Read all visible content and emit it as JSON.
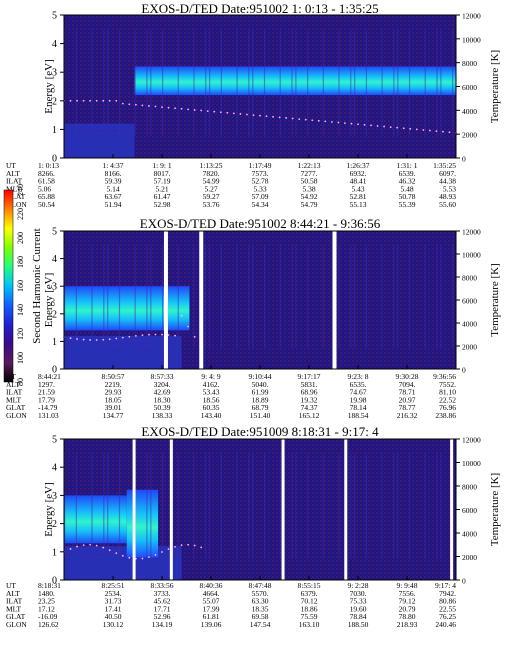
{
  "chart_data": [
    {
      "type": "heatmap",
      "title": "EXOS-D/TED   Date:951002   1: 0:13 - 1:35:25",
      "ylabel": "Energy [eV]",
      "y2label": "Temperature [K]",
      "ylim": [
        0,
        5
      ],
      "y2lim": [
        0,
        12000
      ],
      "yticks": [
        "0",
        "1",
        "2",
        "3",
        "4",
        "5"
      ],
      "y2ticks": [
        "0",
        "2000",
        "4000",
        "6000",
        "8000",
        "10000",
        "12000"
      ],
      "orbit_rows": [
        {
          "label": "UT",
          "values": [
            "1: 0:13",
            "1: 4:37",
            "1: 9: 1",
            "1:13:25",
            "1:17:49",
            "1:22:13",
            "1:26:37",
            "1:31: 1",
            "1:35:25"
          ]
        },
        {
          "label": "ALT",
          "values": [
            "8266.",
            "8166.",
            "8017.",
            "7820.",
            "7573.",
            "7277.",
            "6932.",
            "6539.",
            "6097."
          ]
        },
        {
          "label": "ILAT",
          "values": [
            "61.58",
            "59.39",
            "57.19",
            "54.99",
            "52.78",
            "50.58",
            "48.41",
            "46.32",
            "44.38"
          ]
        },
        {
          "label": "MLT",
          "values": [
            "5.06",
            "5.14",
            "5.21",
            "5.27",
            "5.33",
            "5.38",
            "5.43",
            "5.48",
            "5.53"
          ]
        },
        {
          "label": "GLAT",
          "values": [
            "65.88",
            "63.67",
            "61.47",
            "59.27",
            "57.09",
            "54.92",
            "52.81",
            "50.78",
            "48.93"
          ]
        },
        {
          "label": "GLON",
          "values": [
            "50.54",
            "51.94",
            "52.98",
            "53.76",
            "54.34",
            "54.79",
            "55.13",
            "55.39",
            "55.60"
          ]
        }
      ]
    },
    {
      "type": "heatmap",
      "title": "EXOS-D/TED   Date:951002   8:44:21 - 9:36:56",
      "ylabel": "Energy [eV]",
      "y2label": "Temperature [K]",
      "ylim": [
        0,
        5
      ],
      "y2lim": [
        0,
        12000
      ],
      "yticks": [
        "0",
        "1",
        "2",
        "3",
        "4",
        "5"
      ],
      "y2ticks": [
        "0",
        "2000",
        "4000",
        "6000",
        "8000",
        "10000",
        "12000"
      ],
      "orbit_rows": [
        {
          "label": "UT",
          "values": [
            "8:44:21",
            "8:50:57",
            "8:57:33",
            "9: 4: 9",
            "9:10:44",
            "9:17:17",
            "9:23: 8",
            "9:30:28",
            "9:36:56"
          ]
        },
        {
          "label": "ALT",
          "values": [
            "1297.",
            "2219.",
            "3204.",
            "4162.",
            "5040.",
            "5831.",
            "6535.",
            "7094.",
            "7552."
          ]
        },
        {
          "label": "ILAT",
          "values": [
            "21.59",
            "29.93",
            "42.69",
            "53.43",
            "61.99",
            "68.96",
            "74.67",
            "78.71",
            "81.10"
          ]
        },
        {
          "label": "MLT",
          "values": [
            "17.79",
            "18.05",
            "18.30",
            "18.56",
            "18.89",
            "19.32",
            "19.98",
            "20.97",
            "22.52"
          ]
        },
        {
          "label": "GLAT",
          "values": [
            "-14.79",
            "39.01",
            "50.39",
            "60.35",
            "68.79",
            "74.37",
            "78.14",
            "78.77",
            "76.96"
          ]
        },
        {
          "label": "GLON",
          "values": [
            "131.03",
            "134.77",
            "138.33",
            "143.40",
            "151.40",
            "165.12",
            "188.54",
            "216.32",
            "238.86"
          ]
        }
      ]
    },
    {
      "type": "heatmap",
      "title": "EXOS-D/TED   Date:951009   8:18:31 - 9:17: 4",
      "ylabel": "Energy [eV]",
      "y2label": "Temperature [K]",
      "ylim": [
        0,
        5
      ],
      "y2lim": [
        0,
        12000
      ],
      "yticks": [
        "0",
        "1",
        "2",
        "3",
        "4",
        "5"
      ],
      "y2ticks": [
        "0",
        "2000",
        "4000",
        "6000",
        "8000",
        "10000",
        "12000"
      ],
      "orbit_rows": [
        {
          "label": "UT",
          "values": [
            "8:18:31",
            "8:25:51",
            "8:33:56",
            "8:40:36",
            "8:47:48",
            "8:55:15",
            "9: 2:28",
            "9: 9:48",
            "9:17: 4"
          ]
        },
        {
          "label": "ALT",
          "values": [
            "1480.",
            "2534.",
            "3733.",
            "4664.",
            "5570.",
            "6379.",
            "7030.",
            "7556.",
            "7942."
          ]
        },
        {
          "label": "ILAT",
          "values": [
            "23.25",
            "31.73",
            "45.62",
            "55.07",
            "63.30",
            "70.12",
            "75.33",
            "79.12",
            "80.86"
          ]
        },
        {
          "label": "MLT",
          "values": [
            "17.12",
            "17.41",
            "17.71",
            "17.99",
            "18.35",
            "18.86",
            "19.60",
            "20.79",
            "22.55"
          ]
        },
        {
          "label": "GLAT",
          "values": [
            "-16.09",
            "40.50",
            "52.96",
            "61.81",
            "69.58",
            "75.59",
            "78.84",
            "78.80",
            "76.25"
          ]
        },
        {
          "label": "GLON",
          "values": [
            "126.62",
            "130.12",
            "134.19",
            "139.06",
            "147.54",
            "163.10",
            "188.50",
            "218.93",
            "240.46"
          ]
        }
      ]
    }
  ],
  "colorbar": {
    "label": "Second Harmonic Current",
    "ticks": [
      "80",
      "100",
      "120",
      "140",
      "160",
      "180",
      "200",
      "220",
      "240"
    ],
    "colors": [
      "#000000",
      "#5a1a5a",
      "#3a0a8a",
      "#2020d0",
      "#1060ff",
      "#00c0ff",
      "#20ff80",
      "#80ff00",
      "#ffff00",
      "#ff8000",
      "#ff0000"
    ]
  }
}
